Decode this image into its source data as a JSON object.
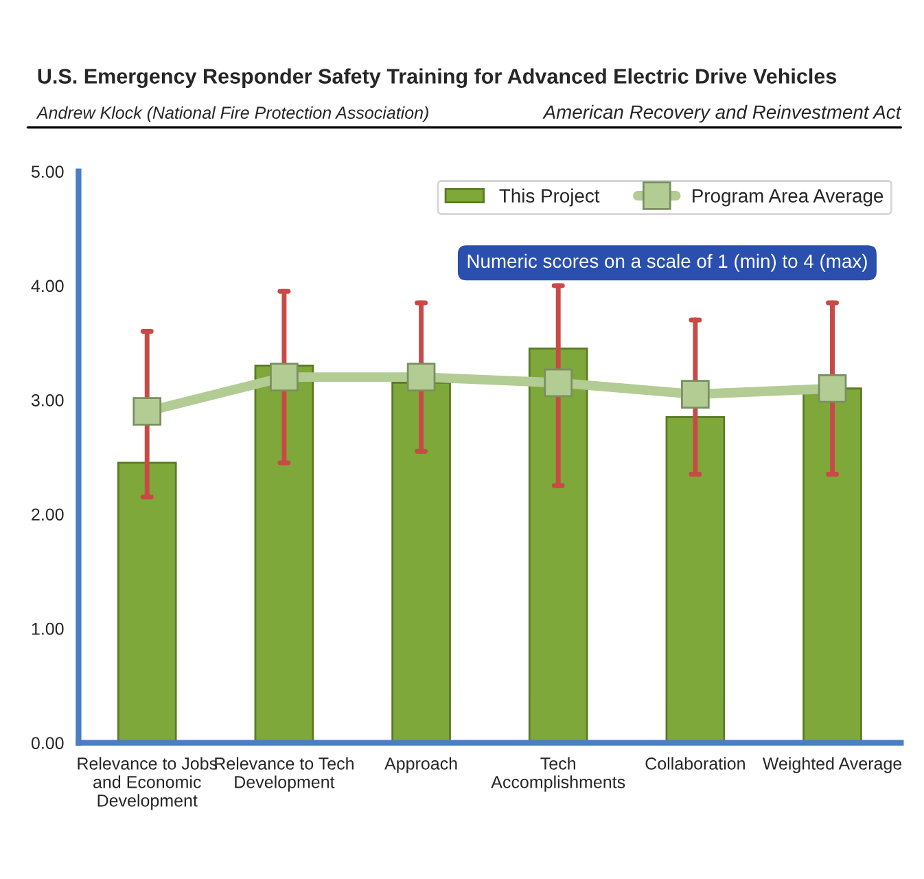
{
  "chart_data": {
    "type": "bar",
    "title": "U.S. Emergency Responder Safety Training for Advanced Electric Drive Vehicles",
    "annotations": [
      "Andrew Klock (National Fire Protection Association)",
      "American Recovery and Reinvestment Act",
      "Numeric scores on a scale of 1 (min) to 4 (max)"
    ],
    "categories": [
      "Relevance to Jobs and Economic Development",
      "Relevance to Tech Development",
      "Approach",
      "Tech Accomplishments",
      "Collaboration",
      "Weighted Average"
    ],
    "series": [
      {
        "name": "This Project",
        "color": "#7fa83a",
        "values": [
          2.45,
          3.3,
          3.15,
          3.45,
          2.85,
          3.1
        ]
      },
      {
        "name": "Program Area Average",
        "type": "line",
        "color": "#b3cc94",
        "marker": "square",
        "values": [
          2.9,
          3.2,
          3.2,
          3.15,
          3.05,
          3.1
        ],
        "errors": [
          [
            2.15,
            3.6
          ],
          [
            2.45,
            3.95
          ],
          [
            2.55,
            3.85
          ],
          [
            2.25,
            4.0
          ],
          [
            2.35,
            3.7
          ],
          [
            2.35,
            3.85
          ]
        ]
      }
    ],
    "ylim": [
      0,
      5
    ],
    "yticks": [
      {
        "value": 0,
        "label": "0.00"
      },
      {
        "value": 1,
        "label": "1.00"
      },
      {
        "value": 2,
        "label": "2.00"
      },
      {
        "value": 3,
        "label": "3.00"
      },
      {
        "value": 4,
        "label": "4.00"
      },
      {
        "value": 5,
        "label": "5.00"
      }
    ],
    "grid": false,
    "legend": "top right"
  }
}
